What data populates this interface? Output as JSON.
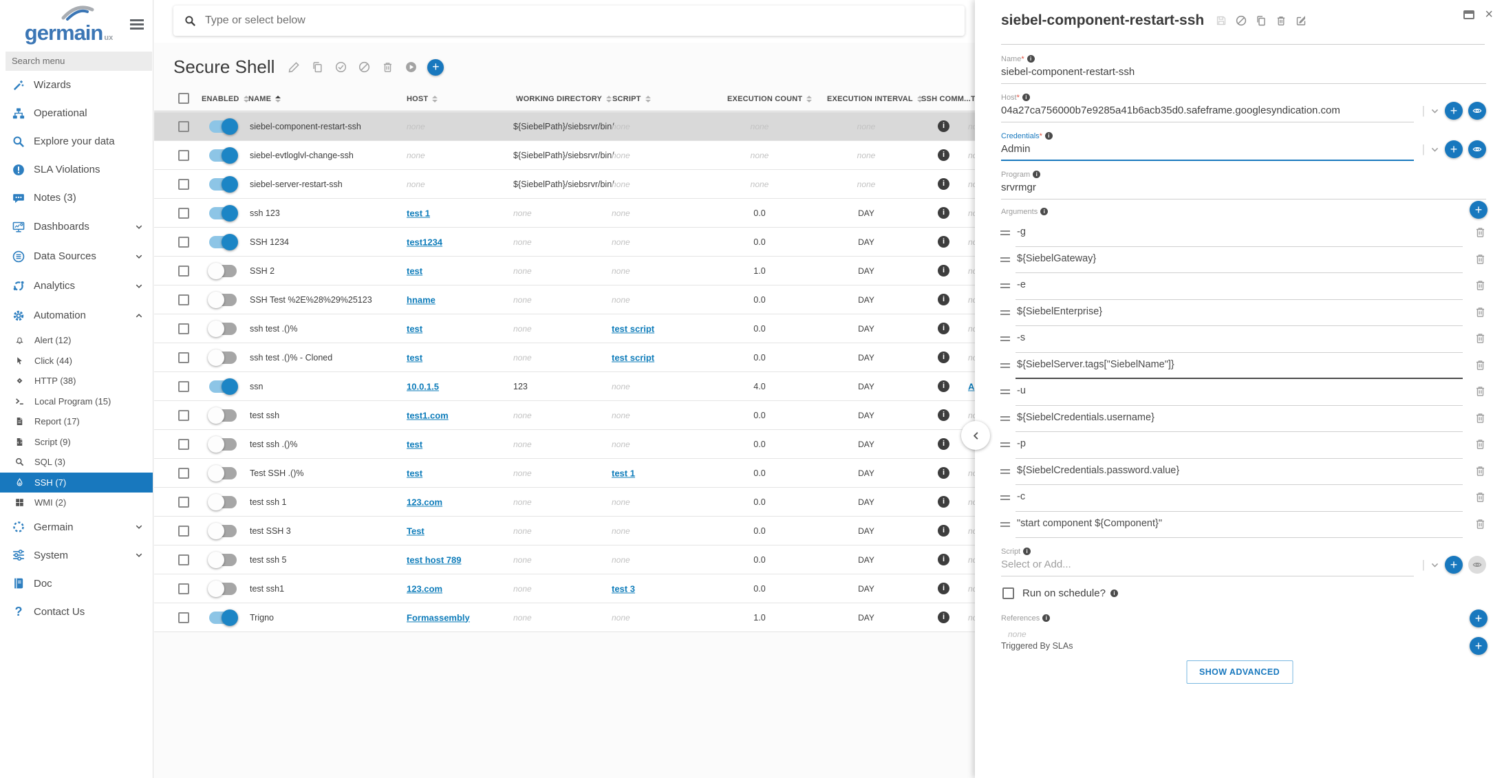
{
  "sidebar": {
    "logo_brand": "germain",
    "logo_sub": "ux",
    "search_placeholder": "Search menu",
    "items": [
      {
        "label": "Wizards",
        "icon": "wand"
      },
      {
        "label": "Operational",
        "icon": "sitemap"
      },
      {
        "label": "Explore your data",
        "icon": "search"
      },
      {
        "label": "SLA Violations",
        "icon": "alert"
      },
      {
        "label": "Notes (3)",
        "icon": "chat"
      },
      {
        "label": "Dashboards",
        "icon": "monitor",
        "chevron": "down",
        "grp": true
      },
      {
        "label": "Data Sources",
        "icon": "db",
        "chevron": "down",
        "grp": true
      },
      {
        "label": "Analytics",
        "icon": "analytics",
        "chevron": "down",
        "grp": true
      },
      {
        "label": "Automation",
        "icon": "gear",
        "chevron": "up",
        "grp": true
      }
    ],
    "automation_children": [
      {
        "label": "Alert (12)",
        "icon": "bell"
      },
      {
        "label": "Click (44)",
        "icon": "cursor"
      },
      {
        "label": "HTTP (38)",
        "icon": "diamond"
      },
      {
        "label": "Local Program (15)",
        "icon": "term"
      },
      {
        "label": "Report (17)",
        "icon": "file"
      },
      {
        "label": "Script (9)",
        "icon": "filecode"
      },
      {
        "label": "SQL (3)",
        "icon": "search"
      },
      {
        "label": "SSH (7)",
        "icon": "drop",
        "selected": true
      },
      {
        "label": "WMI (2)",
        "icon": "win"
      }
    ],
    "items_bottom": [
      {
        "label": "Germain",
        "icon": "dashc",
        "chevron": "down"
      },
      {
        "label": "System",
        "icon": "sliders",
        "chevron": "down"
      },
      {
        "label": "Doc",
        "icon": "book"
      },
      {
        "label": "Contact Us",
        "icon": "quest"
      }
    ]
  },
  "main": {
    "search_placeholder": "Type or select below",
    "title": "Secure Shell",
    "table": {
      "columns": [
        "ENABLED",
        "NAME",
        "HOST",
        "WORKING DIRECTORY",
        "SCRIPT",
        "EXECUTION COUNT",
        "EXECUTION INTERVAL",
        "SSH COMM...",
        "T..."
      ],
      "rows": [
        {
          "enabled": true,
          "selected": true,
          "name": "siebel-component-restart-ssh",
          "host": "none",
          "host_link": false,
          "wd": "${SiebelPath}/siebsrvr/bin/",
          "script": "none",
          "script_link": false,
          "count": "none",
          "interval": "none",
          "extra": "none",
          "extra_link": false
        },
        {
          "enabled": true,
          "name": "siebel-evtloglvl-change-ssh",
          "host": "none",
          "host_link": false,
          "wd": "${SiebelPath}/siebsrvr/bin/",
          "script": "none",
          "script_link": false,
          "count": "none",
          "interval": "none",
          "extra": "none",
          "extra_link": false
        },
        {
          "enabled": true,
          "name": "siebel-server-restart-ssh",
          "host": "none",
          "host_link": false,
          "wd": "${SiebelPath}/siebsrvr/bin/",
          "script": "none",
          "script_link": false,
          "count": "none",
          "interval": "none",
          "extra": "none",
          "extra_link": false
        },
        {
          "enabled": true,
          "name": "ssh 123",
          "host": "test 1",
          "host_link": true,
          "wd": "none",
          "script": "none",
          "script_link": false,
          "count": "0.0",
          "interval": "DAY",
          "extra": "none",
          "extra_link": false
        },
        {
          "enabled": true,
          "name": "SSH 1234",
          "host": "test1234",
          "host_link": true,
          "wd": "none",
          "script": "none",
          "script_link": false,
          "count": "0.0",
          "interval": "DAY",
          "extra": "none",
          "extra_link": false
        },
        {
          "enabled": false,
          "name": "SSH 2",
          "host": "test",
          "host_link": true,
          "wd": "none",
          "script": "none",
          "script_link": false,
          "count": "1.0",
          "interval": "DAY",
          "extra": "none",
          "extra_link": false
        },
        {
          "enabled": false,
          "name": "SSH Test %2E%28%29%25123",
          "host": "hname",
          "host_link": true,
          "wd": "none",
          "script": "none",
          "script_link": false,
          "count": "0.0",
          "interval": "DAY",
          "extra": "none",
          "extra_link": false
        },
        {
          "enabled": false,
          "name": "ssh test .()%",
          "host": "test",
          "host_link": true,
          "wd": "none",
          "script": "test script",
          "script_link": true,
          "count": "0.0",
          "interval": "DAY",
          "extra": "none",
          "extra_link": false
        },
        {
          "enabled": false,
          "name": "ssh test .()% - Cloned",
          "host": "test",
          "host_link": true,
          "wd": "none",
          "script": "test script",
          "script_link": true,
          "count": "0.0",
          "interval": "DAY",
          "extra": "none",
          "extra_link": false
        },
        {
          "enabled": true,
          "name": "ssn",
          "host": "10.0.1.5",
          "host_link": true,
          "wd": "123",
          "script": "none",
          "script_link": false,
          "count": "4.0",
          "interval": "DAY",
          "extra": "A",
          "extra_link": true
        },
        {
          "enabled": false,
          "name": "test ssh",
          "host": "test1.com",
          "host_link": true,
          "wd": "none",
          "script": "none",
          "script_link": false,
          "count": "0.0",
          "interval": "DAY",
          "extra": "none",
          "extra_link": false
        },
        {
          "enabled": false,
          "name": "test ssh .()%",
          "host": "test",
          "host_link": true,
          "wd": "none",
          "script": "none",
          "script_link": false,
          "count": "0.0",
          "interval": "DAY",
          "extra": "none",
          "extra_link": false
        },
        {
          "enabled": false,
          "name": "Test SSH .()%",
          "host": "test",
          "host_link": true,
          "wd": "none",
          "script": "test 1",
          "script_link": true,
          "count": "0.0",
          "interval": "DAY",
          "extra": "none",
          "extra_link": false
        },
        {
          "enabled": false,
          "name": "test ssh 1",
          "host": "123.com",
          "host_link": true,
          "wd": "none",
          "script": "none",
          "script_link": false,
          "count": "0.0",
          "interval": "DAY",
          "extra": "none",
          "extra_link": false
        },
        {
          "enabled": false,
          "name": "test SSH 3",
          "host": "Test",
          "host_link": true,
          "wd": "none",
          "script": "none",
          "script_link": false,
          "count": "0.0",
          "interval": "DAY",
          "extra": "none",
          "extra_link": false
        },
        {
          "enabled": false,
          "name": "test ssh 5",
          "host": "test host 789",
          "host_link": true,
          "wd": "none",
          "script": "none",
          "script_link": false,
          "count": "0.0",
          "interval": "DAY",
          "extra": "none",
          "extra_link": false
        },
        {
          "enabled": false,
          "name": "test ssh1",
          "host": "123.com",
          "host_link": true,
          "wd": "none",
          "script": "test 3",
          "script_link": true,
          "count": "0.0",
          "interval": "DAY",
          "extra": "none",
          "extra_link": false
        },
        {
          "enabled": true,
          "name": "Trigno",
          "host": "Formassembly",
          "host_link": true,
          "wd": "none",
          "script": "none",
          "script_link": false,
          "count": "1.0",
          "interval": "DAY",
          "extra": "none",
          "extra_link": false
        }
      ]
    }
  },
  "panel": {
    "title": "siebel-component-restart-ssh",
    "name_label": "Name",
    "name_value": "siebel-component-restart-ssh",
    "host_label": "Host",
    "host_value": "04a27ca756000b7e9285a41b6acb35d0.safeframe.googlesyndication.com",
    "cred_label": "Credentials",
    "cred_value": "Admin",
    "program_label": "Program",
    "program_value": "srvrmgr",
    "arguments_label": "Arguments",
    "arguments": [
      "-g",
      "${SiebelGateway}",
      "-e",
      "${SiebelEnterprise}",
      "-s",
      "${SiebelServer.tags[\"SiebelName\"]}",
      "-u",
      "${SiebelCredentials.username}",
      "-p",
      "${SiebelCredentials.password.value}",
      "-c",
      "\"start component ${Component}\""
    ],
    "script_label": "Script",
    "script_placeholder": "Select or Add...",
    "schedule_label": "Run on schedule?",
    "references_label": "References",
    "references_value": "none",
    "triggered_label": "Triggered By SLAs",
    "show_advanced_label": "SHOW ADVANCED"
  }
}
